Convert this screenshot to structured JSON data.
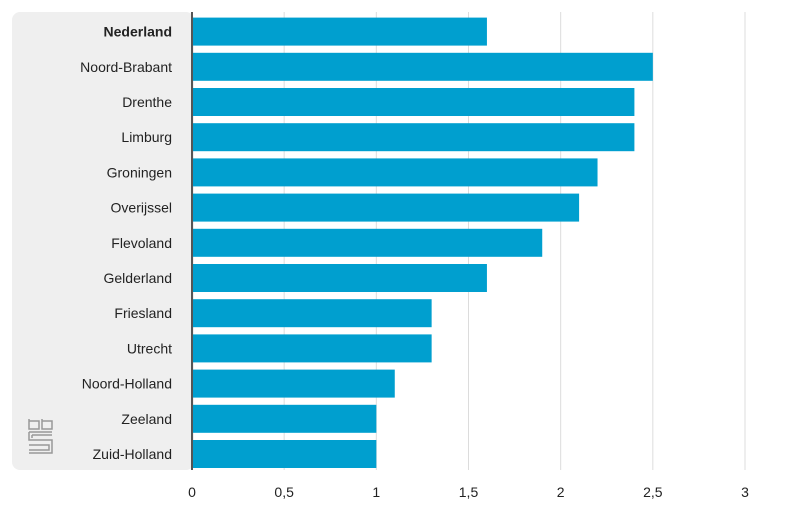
{
  "chart_data": {
    "type": "bar",
    "orientation": "horizontal",
    "categories": [
      "Nederland",
      "Noord-Brabant",
      "Drenthe",
      "Limburg",
      "Groningen",
      "Overijssel",
      "Flevoland",
      "Gelderland",
      "Friesland",
      "Utrecht",
      "Noord-Holland",
      "Zeeland",
      "Zuid-Holland"
    ],
    "highlighted_category": "Nederland",
    "values": [
      1.6,
      2.5,
      2.4,
      2.4,
      2.2,
      2.1,
      1.9,
      1.6,
      1.3,
      1.3,
      1.1,
      1.0,
      1.0
    ],
    "xlim": [
      0,
      3
    ],
    "xticks": [
      "0",
      "0,5",
      "1",
      "1,5",
      "2",
      "2,5",
      "3"
    ],
    "grid": true,
    "bar_color": "#009fcf",
    "logo": "cbs"
  }
}
